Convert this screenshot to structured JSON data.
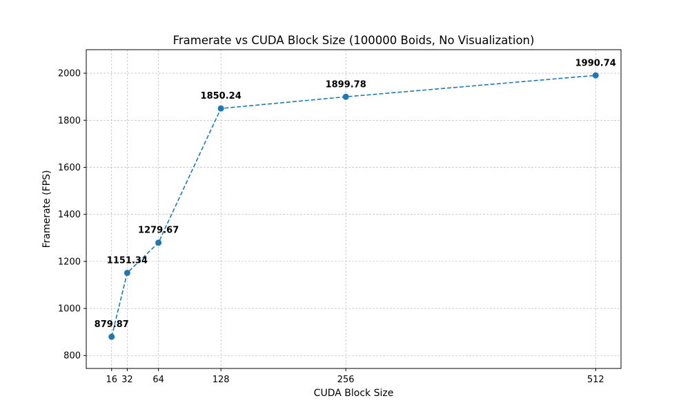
{
  "chart_data": {
    "type": "line",
    "title": "Framerate vs CUDA Block Size (100000 Boids, No Visualization)",
    "xlabel": "CUDA Block Size",
    "ylabel": "Framerate (FPS)",
    "x": [
      16,
      32,
      64,
      128,
      256,
      512
    ],
    "x_tick_labels": [
      "16",
      "32",
      "64",
      "128",
      "256",
      "512"
    ],
    "y_ticks": [
      800,
      1000,
      1200,
      1400,
      1600,
      1800,
      2000
    ],
    "y_tick_labels": [
      "800",
      "1000",
      "1200",
      "1400",
      "1600",
      "1800",
      "2000"
    ],
    "xlim": [
      -10,
      538
    ],
    "ylim": [
      745,
      2100
    ],
    "grid": true,
    "line_style": "dashed",
    "marker": "circle",
    "series": [
      {
        "values": [
          879.87,
          1151.34,
          1279.67,
          1850.24,
          1899.78,
          1990.74
        ],
        "data_labels": [
          "879.87",
          "1151.34",
          "1279.67",
          "1850.24",
          "1899.78",
          "1990.74"
        ],
        "color": "#1f77b4"
      }
    ]
  }
}
